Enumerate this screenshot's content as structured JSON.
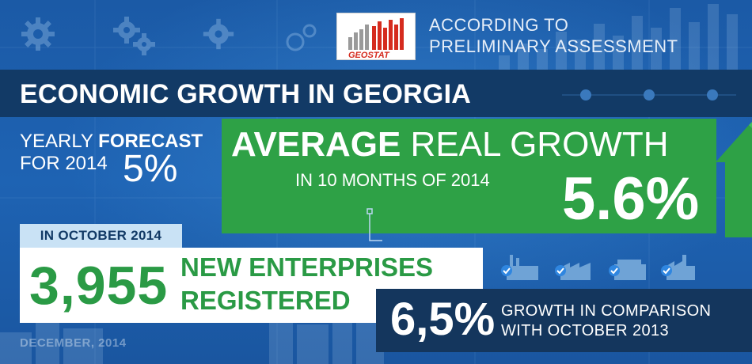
{
  "logo": {
    "brand": "GEOSTAT",
    "colors": {
      "red": "#d52b1e",
      "grey": "#9a9a9a"
    }
  },
  "header": {
    "assessment_line1": "ACCORDING TO",
    "assessment_line2": "PRELIMINARY ASSESSMENT"
  },
  "title": "ECONOMIC GROWTH IN GEORGIA",
  "forecast": {
    "label_prefix": "YEARLY ",
    "label_bold": "FORECAST",
    "label_year": "FOR 2014",
    "value": "5%"
  },
  "average": {
    "label_bold": "AVERAGE",
    "label_rest": " REAL GROWTH",
    "period": "IN 10 MONTHS OF 2014",
    "value": "5.6%"
  },
  "october": {
    "badge": "IN OCTOBER 2014",
    "count": "3,955",
    "line1": "NEW ENTERPRISES",
    "line2": "REGISTERED"
  },
  "comparison": {
    "value": "6,5%",
    "line1": "GROWTH IN COMPARISON",
    "line2": "WITH OCTOBER 2013"
  },
  "footer_date": "DECEMBER, 2014",
  "icons": [
    "gear-icon",
    "gears-icon",
    "factory-icon",
    "growth-arrow-icon"
  ],
  "colors": {
    "background": "#1c5fae",
    "title_bar": "#123a66",
    "green": "#2ea146",
    "navy": "#14365d",
    "badge": "#c9e2f5"
  }
}
